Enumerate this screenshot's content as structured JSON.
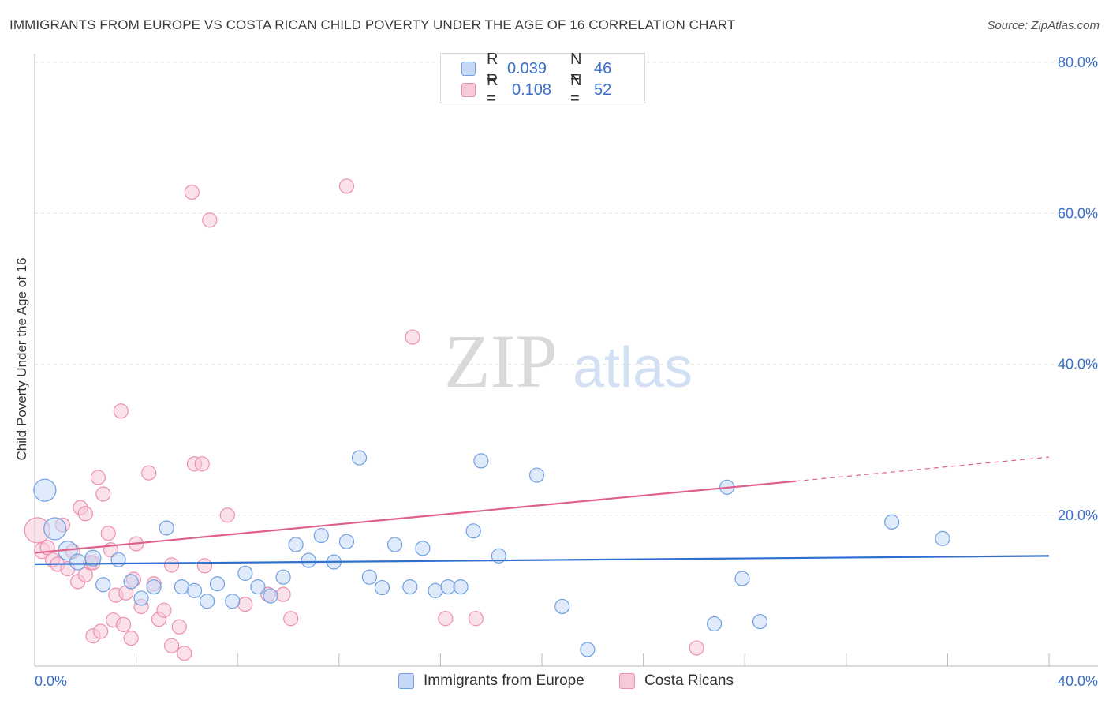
{
  "title": "IMMIGRANTS FROM EUROPE VS COSTA RICAN CHILD POVERTY UNDER THE AGE OF 16 CORRELATION CHART",
  "source": "Source: ZipAtlas.com",
  "watermark": {
    "zip": "ZIP",
    "atlas": "atlas"
  },
  "legend": {
    "rows": [
      {
        "r_label": "R =",
        "r_value": "0.039",
        "n_label": "N =",
        "n_value": "46"
      },
      {
        "r_label": "R =",
        "r_value": "0.108",
        "n_label": "N =",
        "n_value": "52"
      }
    ]
  },
  "bottom_legend": [
    "Immigrants from Europe",
    "Costa Ricans"
  ],
  "chart_data": {
    "type": "scatter",
    "title": "IMMIGRANTS FROM EUROPE VS COSTA RICAN CHILD POVERTY UNDER THE AGE OF 16 CORRELATION CHART",
    "xlabel": "",
    "ylabel": "Child Poverty Under the Age of 16",
    "xlim": [
      0,
      40
    ],
    "ylim": [
      0,
      80
    ],
    "x_tick_labels": [
      "0.0%",
      "40.0%"
    ],
    "y_tick_labels": [
      "20.0%",
      "40.0%",
      "60.0%",
      "80.0%"
    ],
    "y_ticks": [
      20,
      40,
      60,
      80
    ],
    "grid": "horizontal dashed",
    "legend_position": "top-center",
    "colors": {
      "europe": "#6f9fe0",
      "europe_fill": "#c5d8f5",
      "costa": "#ec8fb0",
      "costa_fill": "#f8c9d8",
      "europe_line": "#2f6fcf",
      "costa_line": "#e0608c",
      "tick_label": "#3a6fc8"
    },
    "series": [
      {
        "name": "Immigrants from Europe",
        "r": 0.039,
        "n": 46,
        "trend": {
          "x": [
            0,
            40
          ],
          "y": [
            13.5,
            14.6
          ]
        },
        "points": [
          {
            "x": 0.4,
            "y": 23.3,
            "s": 14
          },
          {
            "x": 0.8,
            "y": 18.2,
            "s": 14
          },
          {
            "x": 1.3,
            "y": 15.3,
            "s": 12
          },
          {
            "x": 1.7,
            "y": 13.8,
            "s": 10
          },
          {
            "x": 2.3,
            "y": 14.3,
            "s": 10
          },
          {
            "x": 2.7,
            "y": 10.8,
            "s": 9
          },
          {
            "x": 3.3,
            "y": 14.1,
            "s": 9
          },
          {
            "x": 3.8,
            "y": 11.2,
            "s": 9
          },
          {
            "x": 4.2,
            "y": 9.0,
            "s": 9
          },
          {
            "x": 4.7,
            "y": 10.5,
            "s": 9
          },
          {
            "x": 5.2,
            "y": 18.3,
            "s": 9
          },
          {
            "x": 5.8,
            "y": 10.5,
            "s": 9
          },
          {
            "x": 6.3,
            "y": 10.0,
            "s": 9
          },
          {
            "x": 6.8,
            "y": 8.6,
            "s": 9
          },
          {
            "x": 7.2,
            "y": 10.9,
            "s": 9
          },
          {
            "x": 7.8,
            "y": 8.6,
            "s": 9
          },
          {
            "x": 8.3,
            "y": 12.3,
            "s": 9
          },
          {
            "x": 8.8,
            "y": 10.5,
            "s": 9
          },
          {
            "x": 9.3,
            "y": 9.3,
            "s": 9
          },
          {
            "x": 9.8,
            "y": 11.8,
            "s": 9
          },
          {
            "x": 10.3,
            "y": 16.1,
            "s": 9
          },
          {
            "x": 10.8,
            "y": 14.0,
            "s": 9
          },
          {
            "x": 11.3,
            "y": 17.3,
            "s": 9
          },
          {
            "x": 11.8,
            "y": 13.8,
            "s": 9
          },
          {
            "x": 12.3,
            "y": 16.5,
            "s": 9
          },
          {
            "x": 12.8,
            "y": 27.6,
            "s": 9
          },
          {
            "x": 13.2,
            "y": 11.8,
            "s": 9
          },
          {
            "x": 13.7,
            "y": 10.4,
            "s": 9
          },
          {
            "x": 14.2,
            "y": 16.1,
            "s": 9
          },
          {
            "x": 14.8,
            "y": 10.5,
            "s": 9
          },
          {
            "x": 15.3,
            "y": 15.6,
            "s": 9
          },
          {
            "x": 15.8,
            "y": 10.0,
            "s": 9
          },
          {
            "x": 16.3,
            "y": 10.5,
            "s": 9
          },
          {
            "x": 16.8,
            "y": 10.5,
            "s": 9
          },
          {
            "x": 17.3,
            "y": 17.9,
            "s": 9
          },
          {
            "x": 17.6,
            "y": 27.2,
            "s": 9
          },
          {
            "x": 18.3,
            "y": 14.6,
            "s": 9
          },
          {
            "x": 19.8,
            "y": 25.3,
            "s": 9
          },
          {
            "x": 20.8,
            "y": 7.9,
            "s": 9
          },
          {
            "x": 21.8,
            "y": 2.2,
            "s": 9
          },
          {
            "x": 26.8,
            "y": 5.6,
            "s": 9
          },
          {
            "x": 27.3,
            "y": 23.7,
            "s": 9
          },
          {
            "x": 27.9,
            "y": 11.6,
            "s": 9
          },
          {
            "x": 28.6,
            "y": 5.9,
            "s": 9
          },
          {
            "x": 33.8,
            "y": 19.1,
            "s": 9
          },
          {
            "x": 35.8,
            "y": 16.9,
            "s": 9
          }
        ]
      },
      {
        "name": "Costa Ricans",
        "r": 0.108,
        "n": 52,
        "trend": {
          "x": [
            0,
            30
          ],
          "y": [
            15.0,
            24.5
          ]
        },
        "trend_dashed": {
          "x": [
            30,
            40
          ],
          "y": [
            24.5,
            27.7
          ]
        },
        "points": [
          {
            "x": 0.1,
            "y": 18.0,
            "s": 16
          },
          {
            "x": 0.3,
            "y": 15.3,
            "s": 10
          },
          {
            "x": 0.5,
            "y": 15.7,
            "s": 9
          },
          {
            "x": 0.7,
            "y": 14.1,
            "s": 9
          },
          {
            "x": 0.9,
            "y": 13.5,
            "s": 9
          },
          {
            "x": 1.1,
            "y": 18.7,
            "s": 9
          },
          {
            "x": 1.3,
            "y": 12.9,
            "s": 9
          },
          {
            "x": 1.5,
            "y": 15.2,
            "s": 9
          },
          {
            "x": 1.7,
            "y": 11.2,
            "s": 9
          },
          {
            "x": 1.8,
            "y": 21.0,
            "s": 9
          },
          {
            "x": 2.0,
            "y": 12.1,
            "s": 9
          },
          {
            "x": 2.0,
            "y": 20.2,
            "s": 9
          },
          {
            "x": 2.2,
            "y": 13.7,
            "s": 9
          },
          {
            "x": 2.3,
            "y": 13.7,
            "s": 9
          },
          {
            "x": 2.3,
            "y": 4.0,
            "s": 9
          },
          {
            "x": 2.5,
            "y": 25.0,
            "s": 9
          },
          {
            "x": 2.6,
            "y": 4.6,
            "s": 9
          },
          {
            "x": 2.7,
            "y": 22.8,
            "s": 9
          },
          {
            "x": 2.9,
            "y": 17.6,
            "s": 9
          },
          {
            "x": 3.0,
            "y": 15.4,
            "s": 9
          },
          {
            "x": 3.1,
            "y": 6.1,
            "s": 9
          },
          {
            "x": 3.2,
            "y": 9.4,
            "s": 9
          },
          {
            "x": 3.4,
            "y": 33.8,
            "s": 9
          },
          {
            "x": 3.5,
            "y": 5.5,
            "s": 9
          },
          {
            "x": 3.6,
            "y": 9.7,
            "s": 9
          },
          {
            "x": 3.8,
            "y": 3.7,
            "s": 9
          },
          {
            "x": 3.9,
            "y": 11.5,
            "s": 9
          },
          {
            "x": 4.0,
            "y": 16.2,
            "s": 9
          },
          {
            "x": 4.2,
            "y": 7.9,
            "s": 9
          },
          {
            "x": 4.5,
            "y": 25.6,
            "s": 9
          },
          {
            "x": 4.7,
            "y": 10.9,
            "s": 9
          },
          {
            "x": 4.9,
            "y": 6.2,
            "s": 9
          },
          {
            "x": 5.1,
            "y": 7.4,
            "s": 9
          },
          {
            "x": 5.4,
            "y": 13.4,
            "s": 9
          },
          {
            "x": 5.4,
            "y": 2.7,
            "s": 9
          },
          {
            "x": 5.7,
            "y": 5.2,
            "s": 9
          },
          {
            "x": 5.9,
            "y": 1.7,
            "s": 9
          },
          {
            "x": 6.2,
            "y": 62.8,
            "s": 9
          },
          {
            "x": 6.3,
            "y": 26.8,
            "s": 9
          },
          {
            "x": 6.6,
            "y": 26.8,
            "s": 9
          },
          {
            "x": 6.7,
            "y": 13.3,
            "s": 9
          },
          {
            "x": 6.9,
            "y": 59.1,
            "s": 9
          },
          {
            "x": 7.6,
            "y": 20.0,
            "s": 9
          },
          {
            "x": 8.3,
            "y": 8.2,
            "s": 9
          },
          {
            "x": 9.2,
            "y": 9.5,
            "s": 9
          },
          {
            "x": 9.8,
            "y": 9.5,
            "s": 9
          },
          {
            "x": 10.1,
            "y": 6.3,
            "s": 9
          },
          {
            "x": 12.3,
            "y": 63.6,
            "s": 9
          },
          {
            "x": 14.9,
            "y": 43.6,
            "s": 9
          },
          {
            "x": 16.2,
            "y": 6.3,
            "s": 9
          },
          {
            "x": 17.4,
            "y": 6.3,
            "s": 9
          },
          {
            "x": 26.1,
            "y": 2.4,
            "s": 9
          }
        ]
      }
    ]
  }
}
